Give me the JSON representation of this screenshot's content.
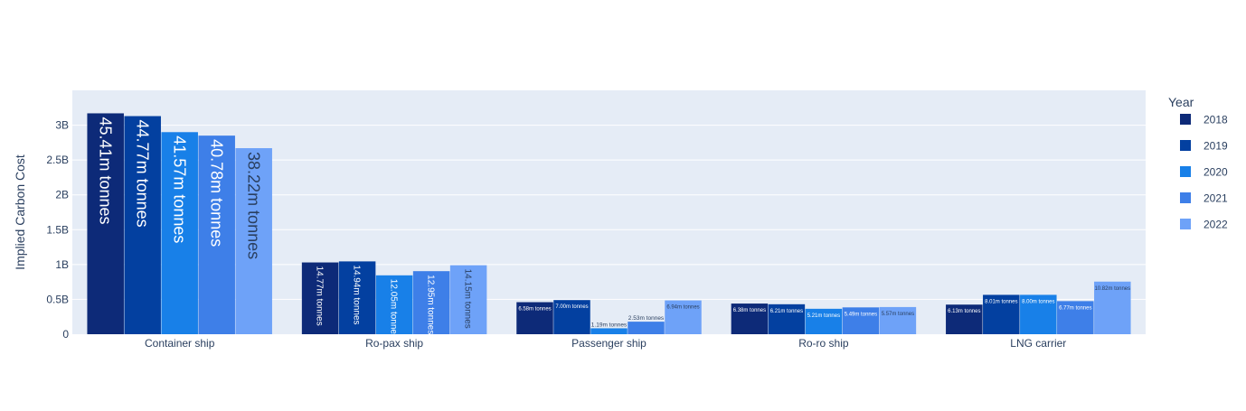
{
  "chart_data": {
    "type": "bar",
    "title": "",
    "xlabel": "",
    "ylabel": "Implied Carbon Cost",
    "ylim": [
      0,
      3500000000
    ],
    "yticks": [
      {
        "value": 0,
        "label": "0"
      },
      {
        "value": 500000000,
        "label": "0.5B"
      },
      {
        "value": 1000000000,
        "label": "1B"
      },
      {
        "value": 1500000000,
        "label": "1.5B"
      },
      {
        "value": 2000000000,
        "label": "2B"
      },
      {
        "value": 2500000000,
        "label": "2.5B"
      },
      {
        "value": 3000000000,
        "label": "3B"
      }
    ],
    "grid": true,
    "legend_position": "right",
    "legend_title": "Year",
    "categories": [
      "Container ship",
      "Ro-pax ship",
      "Passenger ship",
      "Ro-ro ship",
      "LNG carrier"
    ],
    "series": [
      {
        "name": "2018",
        "color": "#0d2a78",
        "values": [
          3170000000,
          1030000000,
          460000000,
          440000000,
          425000000
        ],
        "labels": [
          "45.41m tonnes",
          "14.77m tonnes",
          "6.58m tonnes",
          "6.38m tonnes",
          "6.13m tonnes"
        ]
      },
      {
        "name": "2019",
        "color": "#0340a0",
        "values": [
          3130000000,
          1045000000,
          490000000,
          430000000,
          565000000
        ],
        "labels": [
          "44.77m tonnes",
          "14.94m tonnes",
          "7.00m tonnes",
          "6.21m tonnes",
          "8.01m tonnes"
        ]
      },
      {
        "name": "2020",
        "color": "#1880e8",
        "values": [
          2900000000,
          845000000,
          85000000,
          365000000,
          565000000
        ],
        "labels": [
          "41.57m tonnes",
          "12.05m tonnes",
          "1.19m tonnes",
          "5.21m tonnes",
          "8.00m tonnes"
        ]
      },
      {
        "name": "2021",
        "color": "#3e7fe8",
        "values": [
          2850000000,
          905000000,
          180000000,
          385000000,
          475000000
        ],
        "labels": [
          "40.78m tonnes",
          "12.95m tonnes",
          "2.53m tonnes",
          "5.49m tonnes",
          "6.77m tonnes"
        ]
      },
      {
        "name": "2022",
        "color": "#6ea2f8",
        "values": [
          2670000000,
          990000000,
          485000000,
          390000000,
          755000000
        ],
        "labels": [
          "38.22m tonnes",
          "14.15m tonnes",
          "6.94m tonnes",
          "5.57m tonnes",
          "10.82m tonnes"
        ]
      }
    ],
    "colors": {
      "plot_background": "#e5ecf6",
      "gridline": "#ffffff",
      "text": "#2a3f5f"
    }
  }
}
